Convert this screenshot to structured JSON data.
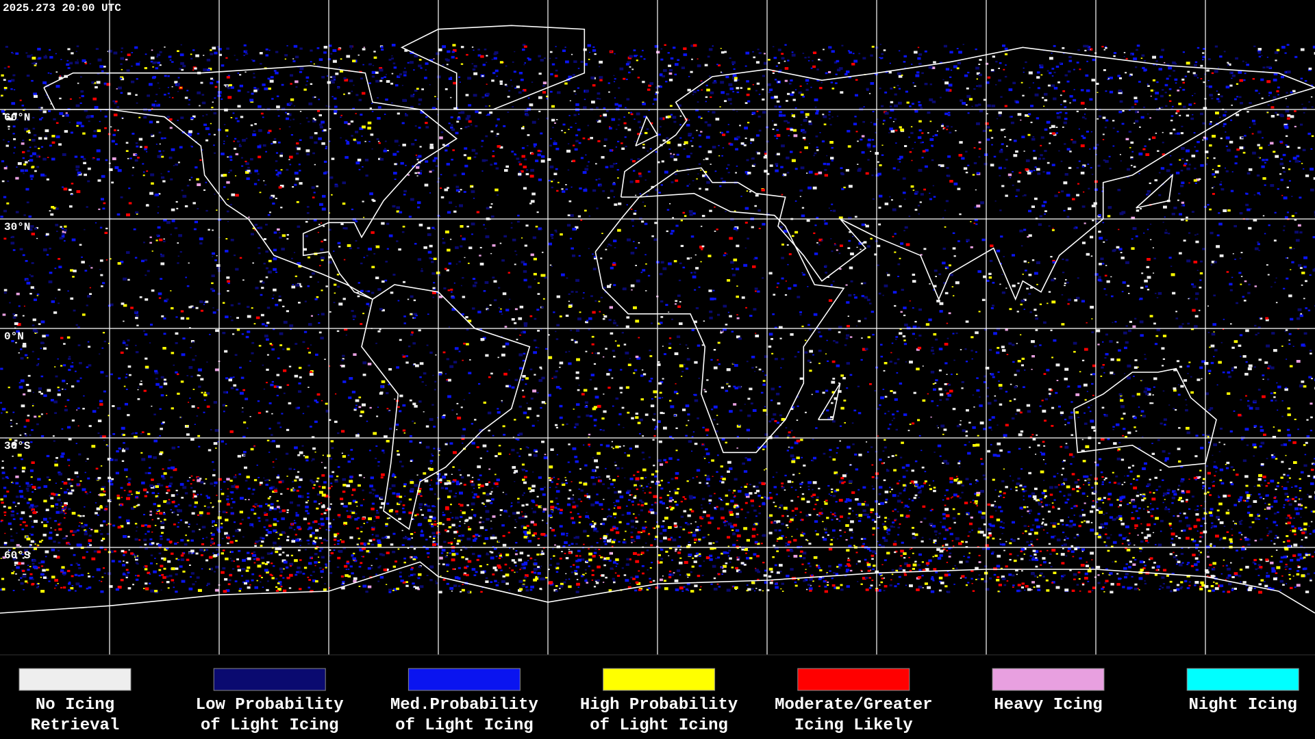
{
  "timestamp": "2025.273 20:00 UTC",
  "lat_labels": [
    "60°N",
    "30°N",
    "0°N",
    "30°S",
    "60°S"
  ],
  "legend": [
    {
      "lines": [
        "No Icing",
        "Retrieval"
      ],
      "color": "#eeeeee"
    },
    {
      "lines": [
        "Low Probability",
        "of Light Icing"
      ],
      "color": "#0a0a70"
    },
    {
      "lines": [
        "Med.Probability",
        "of Light Icing"
      ],
      "color": "#0a14f0"
    },
    {
      "lines": [
        "High Probability",
        "of Light Icing"
      ],
      "color": "#ffff00"
    },
    {
      "lines": [
        "Moderate/Greater",
        "Icing Likely"
      ],
      "color": "#ff0000"
    },
    {
      "lines": [
        "Heavy Icing"
      ],
      "color": "#e8a0e0"
    },
    {
      "lines": [
        "Night Icing"
      ],
      "color": "#00ffff"
    }
  ]
}
